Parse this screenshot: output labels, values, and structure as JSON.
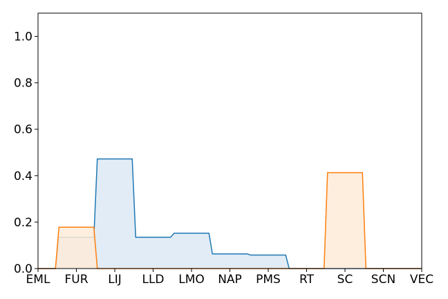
{
  "chart_data": {
    "type": "area",
    "title": "",
    "xlabel": "",
    "ylabel": "",
    "categories": [
      "EML",
      "FUR",
      "LIJ",
      "LLD",
      "LMO",
      "NAP",
      "PMS",
      "RT",
      "SC",
      "SCN",
      "VEC"
    ],
    "ylim": [
      0,
      1.1
    ],
    "yticks": [
      "0.0",
      "0.2",
      "0.4",
      "0.6",
      "0.8",
      "1.0"
    ],
    "grid": false,
    "legend": "none",
    "series": [
      {
        "color": "#1f77b4",
        "fill": "#dce9f5",
        "values": [
          0.0,
          0.135,
          0.472,
          0.135,
          0.152,
          0.063,
          0.058,
          0.0,
          0.0,
          0.0,
          0.0
        ]
      },
      {
        "color": "#ff7f0e",
        "fill": "#fdebd8",
        "values": [
          0.0,
          0.178,
          0.0,
          0.0,
          0.0,
          0.0,
          0.0,
          0.0,
          0.413,
          0.0,
          0.0
        ]
      }
    ]
  }
}
